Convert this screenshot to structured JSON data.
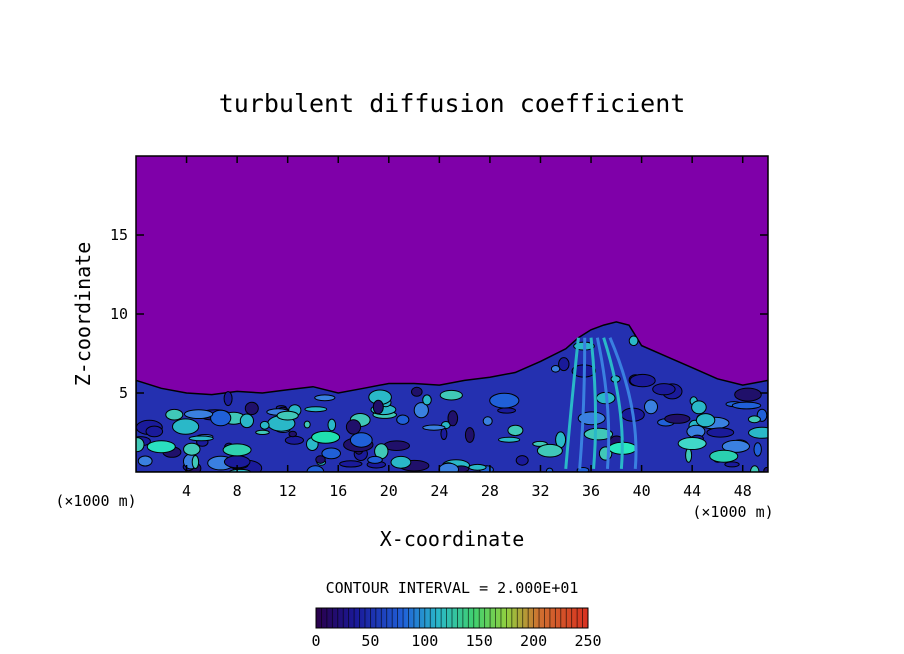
{
  "chart_data": {
    "type": "heatmap",
    "title": "turbulent diffusion coefficient",
    "xlabel": "X-coordinate",
    "ylabel": "Z-coordinate",
    "x_unit_left": "(×1000 m)",
    "x_unit_right": "(×1000 m)",
    "xlim": [
      0,
      50
    ],
    "ylim": [
      0,
      20
    ],
    "xticks": [
      4,
      8,
      12,
      16,
      20,
      24,
      28,
      32,
      36,
      40,
      44,
      48
    ],
    "yticks": [
      5,
      10,
      15
    ],
    "contour_interval_text": "CONTOUR INTERVAL = 2.000E+01",
    "colorbar": {
      "range": [
        0,
        250
      ],
      "tick_labels": [
        "0",
        "50",
        "100",
        "150",
        "200",
        "250"
      ],
      "tick_values": [
        0,
        50,
        100,
        150,
        200,
        250
      ]
    },
    "background_color": "#7f00a9",
    "boundary_layer_top_km": [
      [
        0,
        5.8
      ],
      [
        2,
        5.3
      ],
      [
        4,
        5.0
      ],
      [
        6,
        4.9
      ],
      [
        8,
        5.1
      ],
      [
        10,
        5.0
      ],
      [
        12,
        5.2
      ],
      [
        14,
        5.4
      ],
      [
        16,
        5.0
      ],
      [
        18,
        5.3
      ],
      [
        20,
        5.6
      ],
      [
        22,
        5.6
      ],
      [
        24,
        5.5
      ],
      [
        26,
        5.8
      ],
      [
        28,
        6.0
      ],
      [
        30,
        6.3
      ],
      [
        32,
        7.0
      ],
      [
        34,
        7.8
      ],
      [
        35,
        8.5
      ],
      [
        36,
        9.0
      ],
      [
        37,
        9.3
      ],
      [
        38,
        9.5
      ],
      [
        39,
        9.3
      ],
      [
        40,
        8.0
      ],
      [
        42,
        7.3
      ],
      [
        44,
        6.6
      ],
      [
        46,
        5.9
      ],
      [
        48,
        5.5
      ],
      [
        50,
        5.8
      ]
    ]
  }
}
